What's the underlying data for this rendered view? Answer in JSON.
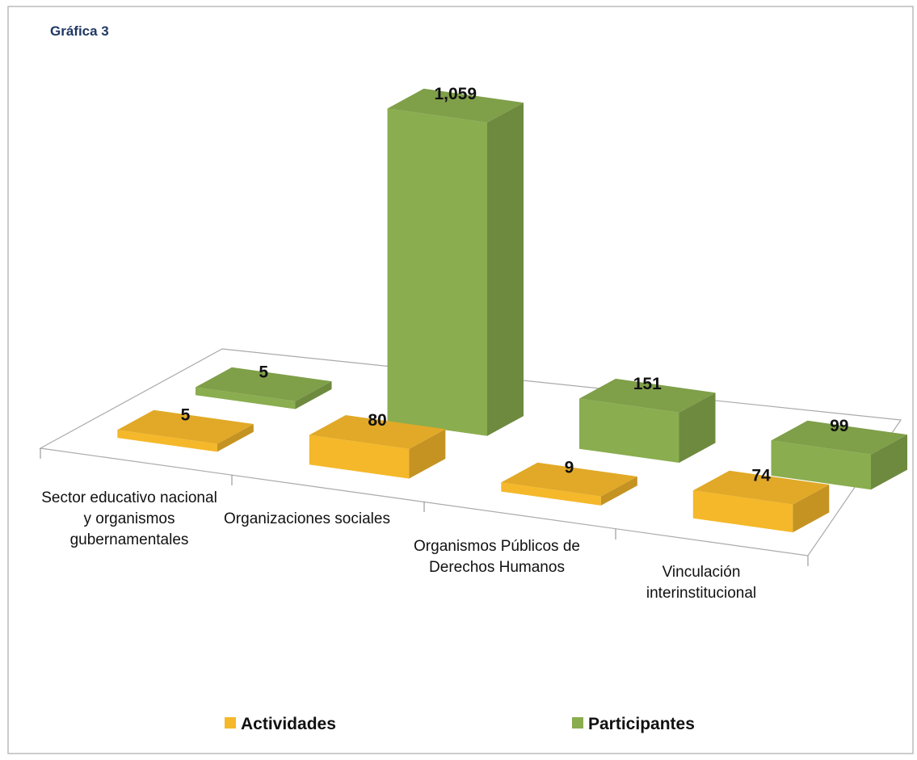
{
  "chart_data": {
    "type": "bar3d",
    "title": "Gráfica 3",
    "categories": [
      "Sector educativo nacional y organismos gubernamentales",
      "Organizaciones sociales",
      "Organismos Públicos de Derechos Humanos",
      "Vinculación interinstitucional"
    ],
    "series": [
      {
        "name": "Actividades",
        "color": "#f5b82a",
        "values": [
          5,
          80,
          9,
          74
        ]
      },
      {
        "name": "Participantes",
        "color": "#8aad4f",
        "values": [
          5,
          1059,
          151,
          99
        ],
        "value_labels": [
          "5",
          "1,059",
          "151",
          "99"
        ]
      }
    ]
  }
}
